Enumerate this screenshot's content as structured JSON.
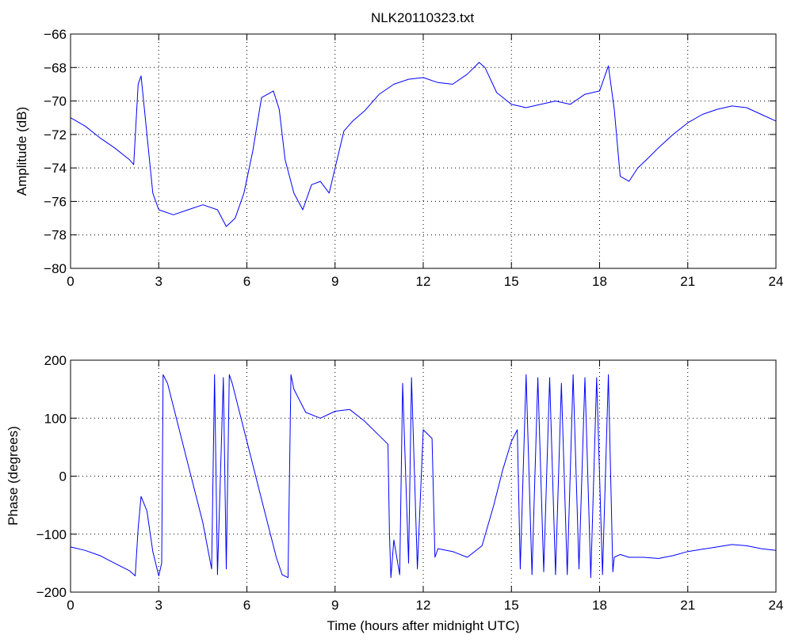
{
  "title": "NLK20110323.txt",
  "line_color": "#0000ff",
  "chart_data": [
    {
      "type": "line",
      "name": "amplitude",
      "xlabel": "",
      "ylabel": "Amplitude (dB)",
      "xlim": [
        0,
        24
      ],
      "ylim": [
        -80,
        -66
      ],
      "xticks": [
        0,
        3,
        6,
        9,
        12,
        15,
        18,
        21,
        24
      ],
      "yticks": [
        -80,
        -78,
        -76,
        -74,
        -72,
        -70,
        -68,
        -66
      ],
      "xtick_labels": [
        "0",
        "3",
        "6",
        "9",
        "12",
        "15",
        "18",
        "21",
        "24"
      ],
      "ytick_labels": [
        "−80",
        "−78",
        "−76",
        "−74",
        "−72",
        "−70",
        "−68",
        "−66"
      ],
      "grid": true,
      "series": [
        {
          "x": [
            0,
            0.5,
            1.0,
            1.5,
            2.0,
            2.15,
            2.3,
            2.4,
            2.6,
            2.8,
            3.0,
            3.5,
            4.0,
            4.5,
            5.0,
            5.3,
            5.6,
            5.9,
            6.2,
            6.5,
            6.9,
            7.1,
            7.3,
            7.6,
            7.9,
            8.2,
            8.5,
            8.8,
            9.0,
            9.3,
            9.6,
            10.0,
            10.5,
            11.0,
            11.5,
            12.0,
            12.5,
            13.0,
            13.5,
            13.9,
            14.1,
            14.5,
            15.0,
            15.5,
            16.0,
            16.5,
            17.0,
            17.5,
            18.0,
            18.3,
            18.5,
            18.7,
            19.0,
            19.3,
            19.6,
            20.0,
            20.5,
            21.0,
            21.5,
            22.0,
            22.5,
            23.0,
            23.5,
            24.0
          ],
          "values": [
            -71.0,
            -71.5,
            -72.2,
            -72.8,
            -73.5,
            -73.8,
            -69.0,
            -68.5,
            -72.0,
            -75.5,
            -76.5,
            -76.8,
            -76.5,
            -76.2,
            -76.5,
            -77.5,
            -77.0,
            -75.5,
            -73.0,
            -69.8,
            -69.4,
            -70.5,
            -73.5,
            -75.5,
            -76.5,
            -75.0,
            -74.8,
            -75.5,
            -74.0,
            -71.8,
            -71.2,
            -70.6,
            -69.6,
            -69.0,
            -68.7,
            -68.6,
            -68.9,
            -69.0,
            -68.4,
            -67.7,
            -68.0,
            -69.5,
            -70.2,
            -70.4,
            -70.2,
            -70.0,
            -70.2,
            -69.6,
            -69.4,
            -67.9,
            -70.5,
            -74.5,
            -74.8,
            -74.0,
            -73.5,
            -72.8,
            -72.0,
            -71.3,
            -70.8,
            -70.5,
            -70.3,
            -70.4,
            -70.8,
            -71.2
          ]
        }
      ]
    },
    {
      "type": "line",
      "name": "phase",
      "xlabel": "Time (hours after midnight UTC)",
      "ylabel": "Phase (degrees)",
      "xlim": [
        0,
        24
      ],
      "ylim": [
        -200,
        200
      ],
      "xticks": [
        0,
        3,
        6,
        9,
        12,
        15,
        18,
        21,
        24
      ],
      "yticks": [
        -200,
        -100,
        0,
        100,
        200
      ],
      "xtick_labels": [
        "0",
        "3",
        "6",
        "9",
        "12",
        "15",
        "18",
        "21",
        "24"
      ],
      "ytick_labels": [
        "−200",
        "−100",
        "0",
        "100",
        "200"
      ],
      "grid": true,
      "series": [
        {
          "x": [
            0,
            0.5,
            1.0,
            1.5,
            2.0,
            2.2,
            2.3,
            2.4,
            2.6,
            2.8,
            3.0,
            3.1,
            3.15,
            3.2,
            3.3,
            3.6,
            4.0,
            4.5,
            4.8,
            4.9,
            5.0,
            5.2,
            5.3,
            5.4,
            5.5,
            6.0,
            6.5,
            7.0,
            7.2,
            7.4,
            7.5,
            7.6,
            8.0,
            8.5,
            9.0,
            9.5,
            10.0,
            10.5,
            10.8,
            10.85,
            10.9,
            11.0,
            11.2,
            11.3,
            11.5,
            11.6,
            11.8,
            12.0,
            12.3,
            12.4,
            12.5,
            13.0,
            13.5,
            14.0,
            14.4,
            14.7,
            15.0,
            15.2,
            15.3,
            15.5,
            15.7,
            15.9,
            16.1,
            16.3,
            16.5,
            16.7,
            16.9,
            17.1,
            17.3,
            17.5,
            17.7,
            17.9,
            18.1,
            18.3,
            18.45,
            18.5,
            18.7,
            19.0,
            19.5,
            20.0,
            20.5,
            21.0,
            21.5,
            22.0,
            22.5,
            23.0,
            23.5,
            24.0
          ],
          "values": [
            -122,
            -128,
            -137,
            -150,
            -163,
            -172,
            -90,
            -35,
            -60,
            -130,
            -172,
            -150,
            175,
            170,
            160,
            100,
            20,
            -80,
            -160,
            175,
            -170,
            170,
            -160,
            175,
            160,
            60,
            -40,
            -140,
            -170,
            -175,
            175,
            150,
            110,
            100,
            112,
            115,
            95,
            70,
            55,
            -100,
            -175,
            -110,
            -170,
            160,
            -150,
            170,
            -160,
            80,
            65,
            -140,
            -125,
            -130,
            -140,
            -120,
            -50,
            10,
            60,
            80,
            -160,
            175,
            -170,
            170,
            -165,
            170,
            -170,
            160,
            -170,
            175,
            -160,
            170,
            -175,
            170,
            -170,
            175,
            -165,
            -140,
            -135,
            -140,
            -140,
            -142,
            -137,
            -130,
            -126,
            -122,
            -118,
            -120,
            -125,
            -128
          ]
        }
      ]
    }
  ]
}
